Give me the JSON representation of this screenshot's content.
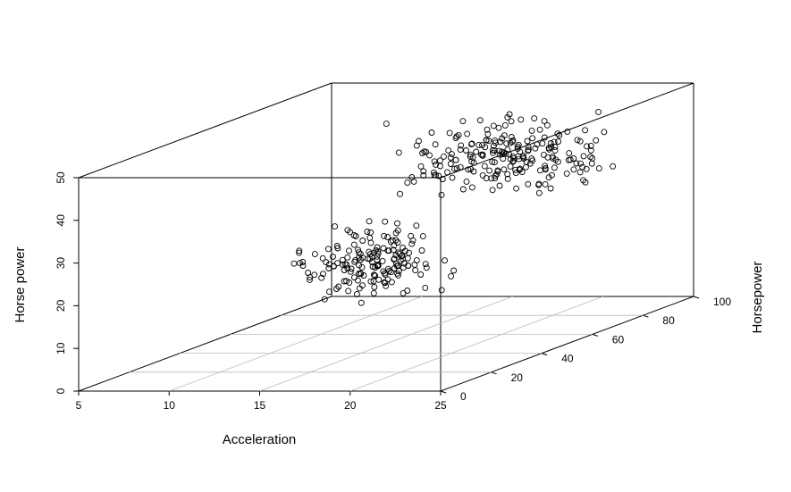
{
  "chart_data": {
    "type": "scatter",
    "plot3d": true,
    "xlabel": "Acceleration",
    "ylabel": "Horsepower",
    "zlabel": "Horse power",
    "xlim": [
      5,
      25
    ],
    "ylim": [
      0,
      100
    ],
    "zlim": [
      0,
      50
    ],
    "x_ticks": [
      "5",
      "10",
      "15",
      "20",
      "25"
    ],
    "y_ticks": [
      "0",
      "20",
      "40",
      "60",
      "80",
      "100"
    ],
    "z_ticks": [
      "0",
      "10",
      "20",
      "30",
      "40",
      "50"
    ],
    "grid": true,
    "marker": "open-circle",
    "colors": {
      "points": "#000000",
      "box": "#000000",
      "grid": "#bbbbbb"
    },
    "clusters": [
      {
        "x_range": [
          14.0,
          22.0
        ],
        "y_range": [
          5,
          40
        ],
        "z_range": [
          15,
          36
        ]
      },
      {
        "x_range": [
          11.0,
          24.0
        ],
        "y_range": [
          55,
          100
        ],
        "z_range": [
          28,
          48
        ]
      }
    ]
  }
}
